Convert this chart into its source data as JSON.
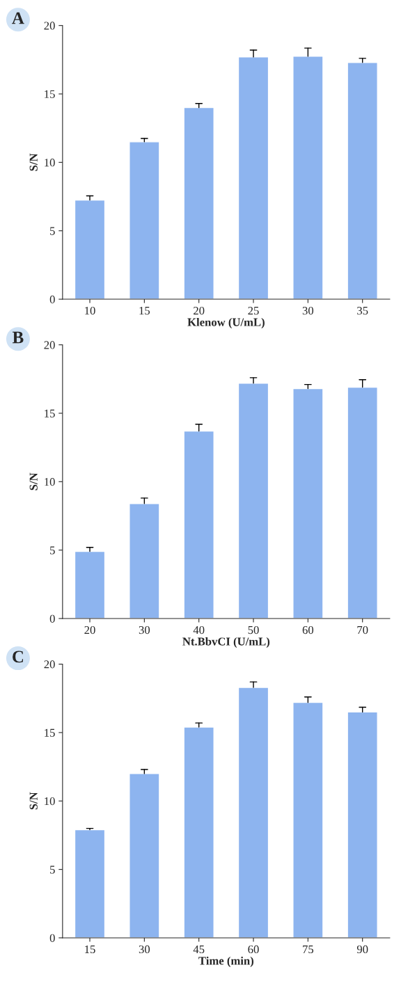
{
  "chart_data": [
    {
      "type": "bar",
      "annotations": [
        "A"
      ],
      "categories": [
        "10",
        "15",
        "20",
        "25",
        "30",
        "35"
      ],
      "values": [
        7.25,
        11.5,
        14.0,
        17.7,
        17.75,
        17.3
      ],
      "errors": [
        [
          7.25,
          7.55
        ],
        [
          11.5,
          11.75
        ],
        [
          14.0,
          14.3
        ],
        [
          17.7,
          18.2
        ],
        [
          17.75,
          18.35
        ],
        [
          17.3,
          17.6
        ]
      ],
      "color": "#8db4ef",
      "xlabel": "Klenow (U/mL)",
      "ylabel": "S/N",
      "ylim": [
        0,
        20
      ],
      "yticks": [
        0,
        5,
        10,
        15,
        20
      ],
      "grid": false,
      "legend": false
    },
    {
      "type": "bar",
      "annotations": [
        "B"
      ],
      "categories": [
        "20",
        "30",
        "40",
        "50",
        "60",
        "70"
      ],
      "values": [
        4.9,
        8.4,
        13.7,
        17.2,
        16.8,
        16.9
      ],
      "errors": [
        [
          4.9,
          5.2
        ],
        [
          8.4,
          8.8
        ],
        [
          13.7,
          14.2
        ],
        [
          17.2,
          17.6
        ],
        [
          16.8,
          17.1
        ],
        [
          16.9,
          17.45
        ]
      ],
      "color": "#8db4ef",
      "xlabel": "Nt.BbvCI (U/mL)",
      "ylabel": "S/N",
      "ylim": [
        0,
        20
      ],
      "yticks": [
        0,
        5,
        10,
        15,
        20
      ],
      "grid": false,
      "legend": false
    },
    {
      "type": "bar",
      "annotations": [
        "C"
      ],
      "categories": [
        "15",
        "30",
        "45",
        "60",
        "75",
        "90"
      ],
      "values": [
        7.9,
        12.0,
        15.4,
        18.3,
        17.2,
        16.5
      ],
      "errors": [
        [
          7.9,
          8.0
        ],
        [
          12.0,
          12.3
        ],
        [
          15.4,
          15.7
        ],
        [
          18.3,
          18.7
        ],
        [
          17.2,
          17.6
        ],
        [
          16.5,
          16.85
        ]
      ],
      "color": "#8db4ef",
      "xlabel": "Time (min)",
      "ylabel": "S/N",
      "ylim": [
        0,
        20
      ],
      "yticks": [
        0,
        5,
        10,
        15,
        20
      ],
      "grid": false,
      "legend": false
    }
  ]
}
